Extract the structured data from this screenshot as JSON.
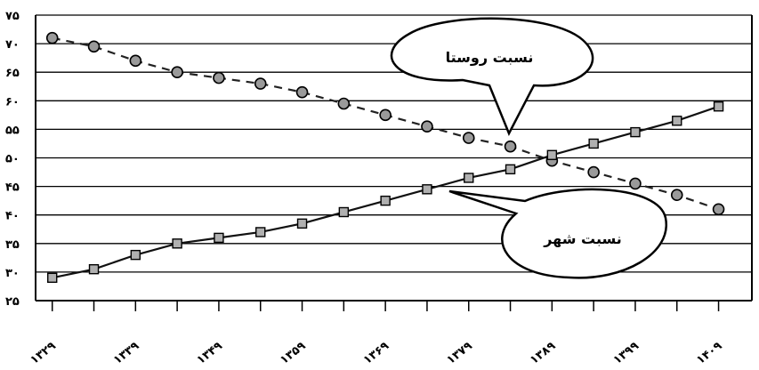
{
  "chart_data": {
    "type": "line",
    "title": "",
    "xlabel": "",
    "ylabel": "",
    "ylim": [
      25,
      75
    ],
    "y_ticks": [
      25,
      30,
      35,
      40,
      45,
      50,
      55,
      60,
      65,
      70,
      75
    ],
    "y_tick_labels": [
      "۲۵",
      "۳۰",
      "۳۵",
      "۴۰",
      "۴۵",
      "۵۰",
      "۵۵",
      "۶۰",
      "۶۵",
      "۷۰",
      "۷۵"
    ],
    "x_tick_labels": [
      "۱۳۲۹",
      "۱۳۳۹",
      "۱۳۴۹",
      "۱۳۵۹",
      "۱۳۶۹",
      "۱۳۷۹",
      "۱۳۸۹",
      "۱۳۹۹",
      "۱۴۰۹"
    ],
    "x": [
      1329,
      1334,
      1339,
      1344,
      1349,
      1354,
      1359,
      1364,
      1369,
      1374,
      1379,
      1384,
      1389,
      1394,
      1399,
      1404,
      1409
    ],
    "grid": true,
    "legend": "none",
    "series": [
      {
        "name": "نسبت روستا",
        "style": "dashed",
        "color": "#222222",
        "values": [
          71,
          69.5,
          67,
          65,
          64,
          63,
          61.5,
          59.5,
          57.5,
          55.5,
          53.5,
          52,
          49.5,
          47.5,
          45.5,
          43.5,
          41
        ]
      },
      {
        "name": "نسبت شهر",
        "style": "solid",
        "color": "#111111",
        "values": [
          29,
          30.5,
          33,
          35,
          36,
          37,
          38.5,
          40.5,
          42.5,
          44.5,
          46.5,
          48,
          50.5,
          52.5,
          54.5,
          56.5,
          59
        ]
      }
    ]
  },
  "callouts": {
    "rural": "نسبت روستا",
    "urban": "نسبت شهر"
  }
}
